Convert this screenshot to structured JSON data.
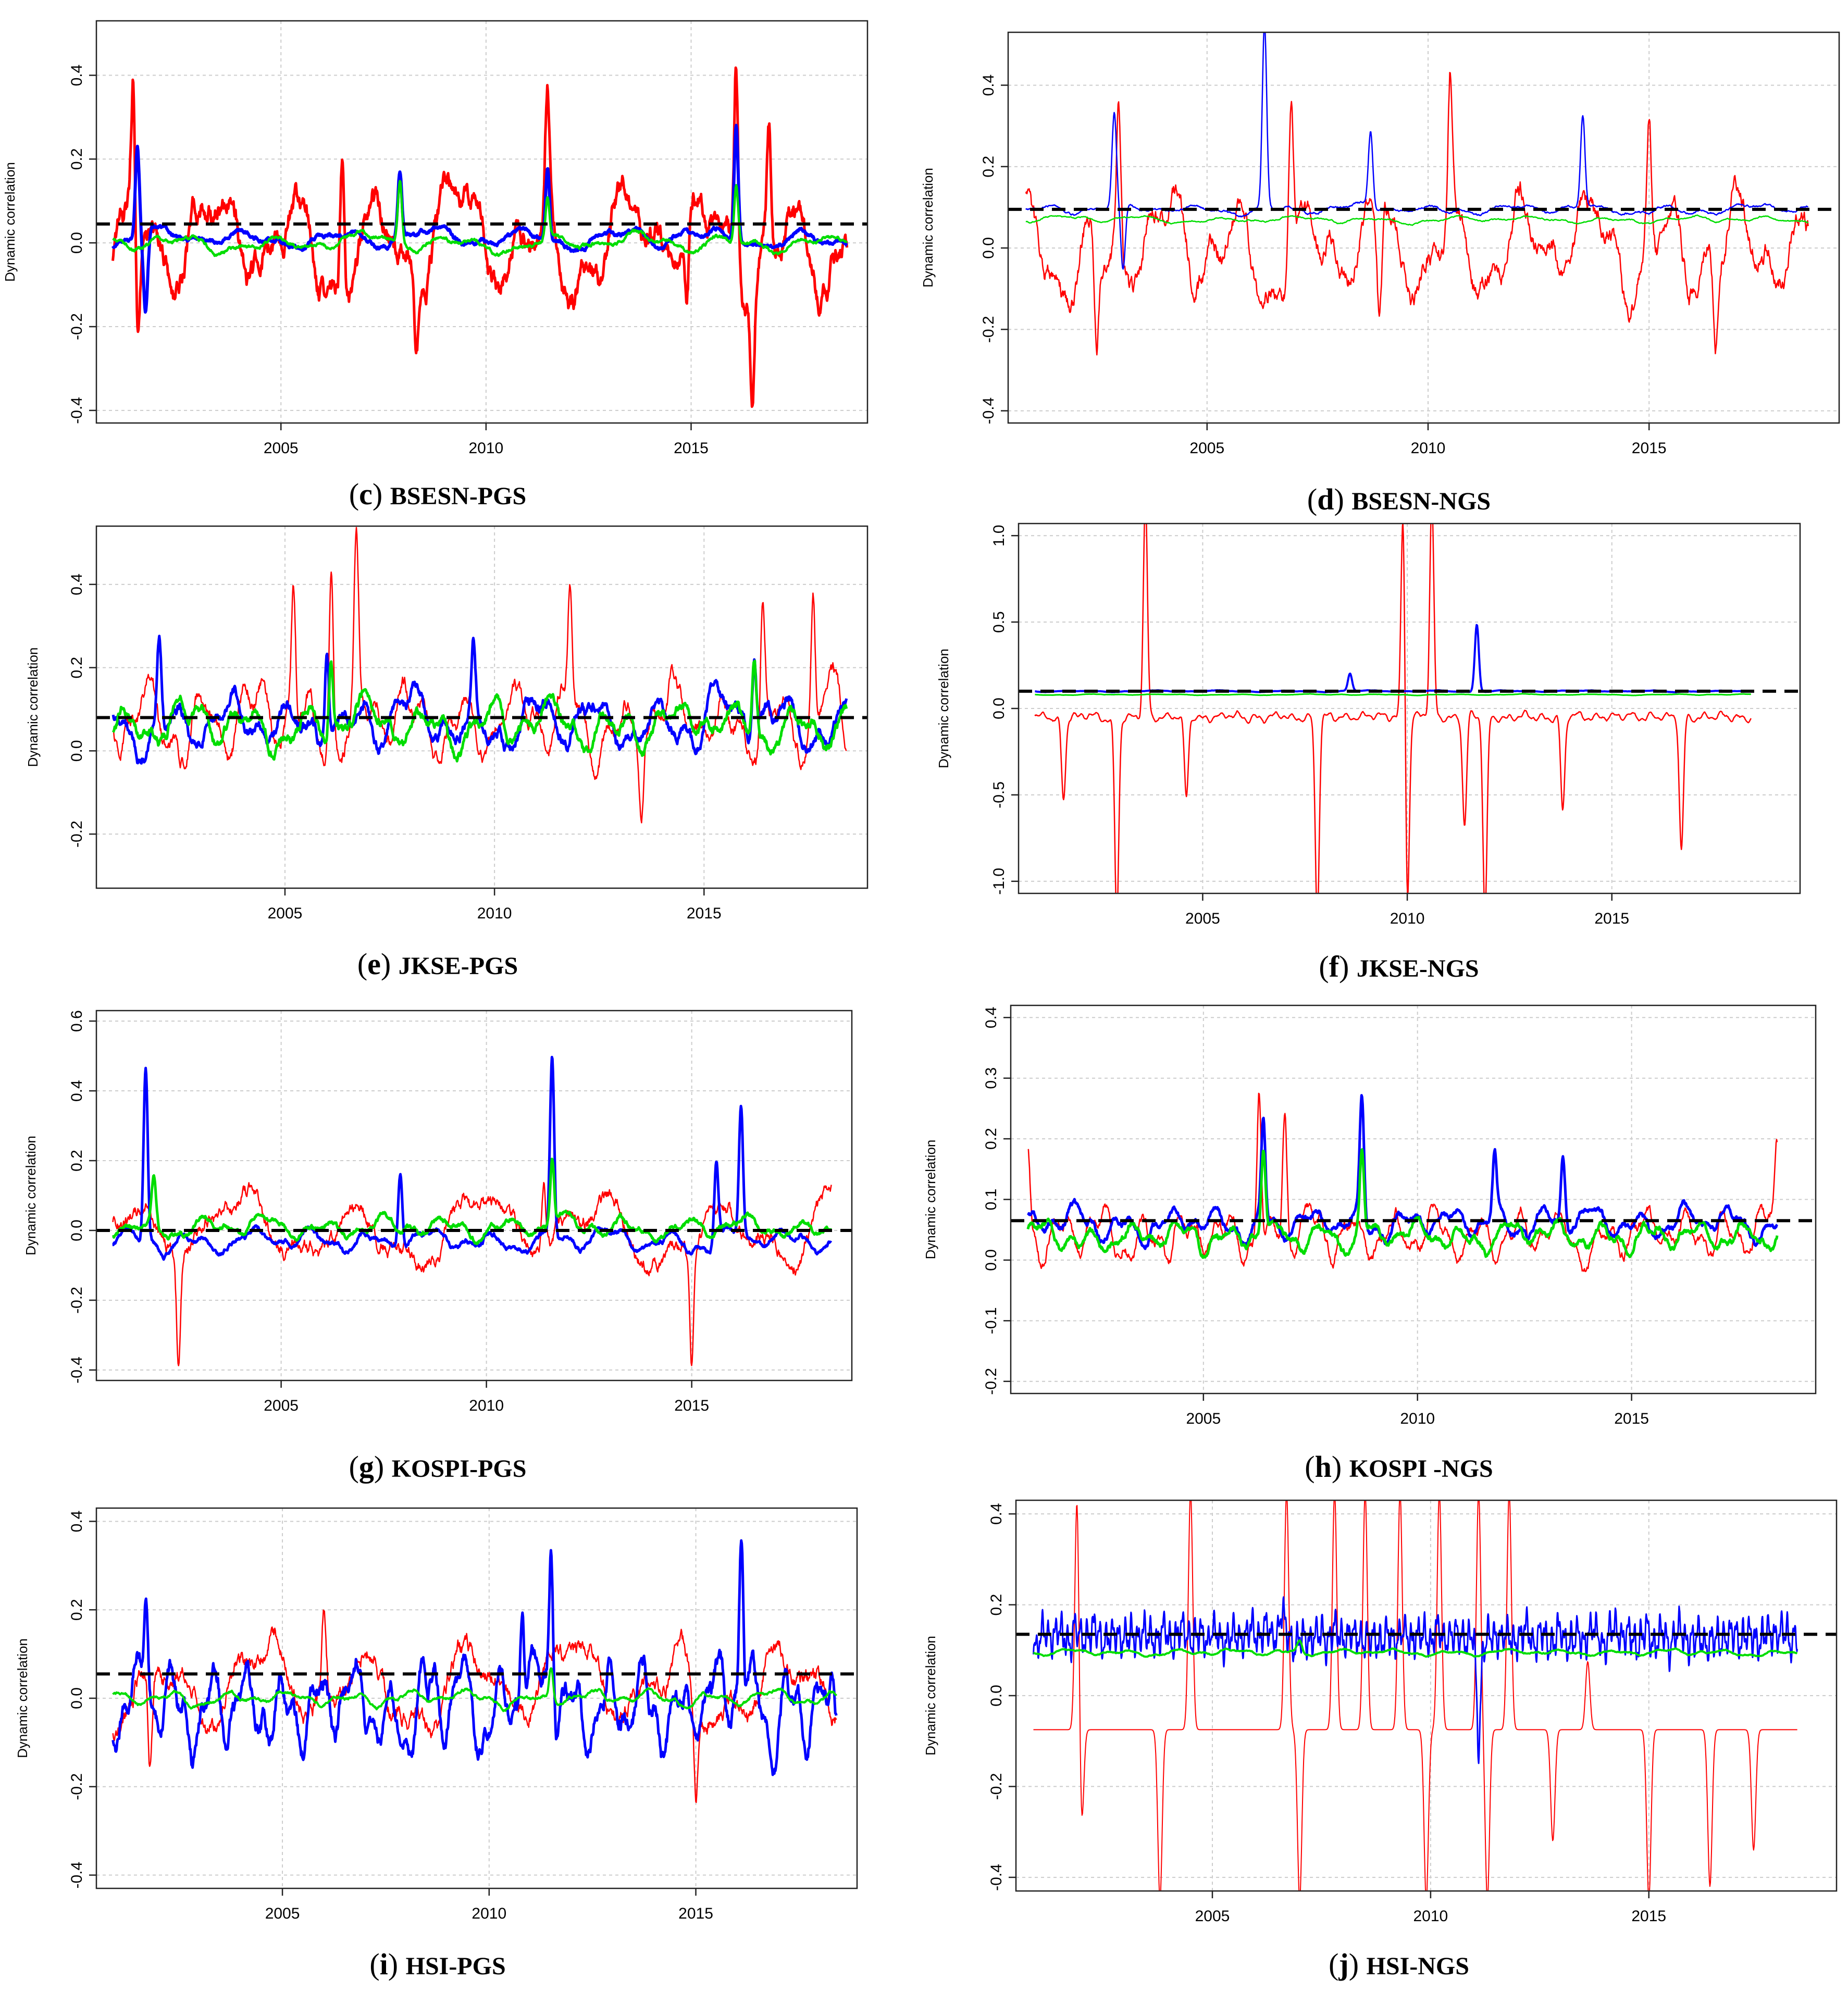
{
  "figure": {
    "series_colors": {
      "red": "#ff0000",
      "blue": "#0000ff",
      "green": "#00dd00",
      "mean": "#000000"
    },
    "grid_color": "#cccccc"
  },
  "chart_data": [
    {
      "id": "c",
      "type": "line",
      "caption_letter": "c",
      "caption_label": "BSESN-PGS",
      "ylabel": "Dynamic correlation",
      "xlim": [
        2000.5,
        2019.3
      ],
      "ylim": [
        -0.43,
        0.53
      ],
      "xticks": [
        2005,
        2010,
        2015
      ],
      "xtick_labels": [
        "2005",
        "2010",
        "2015"
      ],
      "yticks": [
        -0.4,
        -0.2,
        0.0,
        0.2,
        0.4
      ],
      "ytick_labels": [
        "-0.4",
        "-0.2",
        "0.0",
        "0.2",
        "0.4"
      ],
      "mean_line": 0.045,
      "x_start": 2000.9,
      "x_end": 2018.8,
      "series": [
        {
          "name": "red",
          "color": "#ff0000",
          "width": 5,
          "mean": 0.0,
          "amp": 0.16,
          "freq": 9,
          "spikes": [
            [
              2001.4,
              0.36
            ],
            [
              2006.5,
              0.33
            ],
            [
              2011.5,
              0.3
            ],
            [
              2016.1,
              0.48
            ],
            [
              2016.9,
              0.26
            ],
            [
              2008.3,
              -0.21
            ],
            [
              2001.5,
              -0.23
            ],
            [
              2014.9,
              -0.21
            ],
            [
              2016.5,
              -0.24
            ]
          ],
          "seed": 11
        },
        {
          "name": "blue",
          "color": "#0000ff",
          "width": 6,
          "mean": 0.01,
          "amp": 0.03,
          "freq": 8,
          "spikes": [
            [
              2001.5,
              0.23
            ],
            [
              2001.7,
              -0.17
            ],
            [
              2007.9,
              0.17
            ],
            [
              2011.5,
              0.19
            ],
            [
              2016.1,
              0.29
            ]
          ],
          "seed": 22
        },
        {
          "name": "green",
          "color": "#00dd00",
          "width": 4.5,
          "mean": 0.0,
          "amp": 0.025,
          "freq": 8,
          "spikes": [
            [
              2007.9,
              0.15
            ],
            [
              2011.5,
              0.1
            ],
            [
              2016.1,
              0.14
            ]
          ],
          "seed": 33
        }
      ]
    },
    {
      "id": "d",
      "type": "line",
      "caption_letter": "d",
      "caption_label": "BSESN-NGS",
      "ylabel": "Dynamic correlation",
      "xlim": [
        2000.5,
        2019.3
      ],
      "ylim": [
        -0.43,
        0.53
      ],
      "xticks": [
        2005,
        2010,
        2015
      ],
      "xtick_labels": [
        "2005",
        "2010",
        "2015"
      ],
      "yticks": [
        -0.4,
        -0.2,
        0.0,
        0.2,
        0.4
      ],
      "ytick_labels": [
        "-0.4",
        "-0.2",
        "0.0",
        "0.2",
        "0.4"
      ],
      "mean_line": 0.095,
      "x_start": 2000.9,
      "x_end": 2018.6,
      "series": [
        {
          "name": "red",
          "color": "#ff0000",
          "width": 2.5,
          "mean": 0.0,
          "amp": 0.15,
          "freq": 11,
          "spikes": [
            [
              2003.0,
              0.37
            ],
            [
              2006.9,
              0.37
            ],
            [
              2010.5,
              0.38
            ],
            [
              2015.0,
              0.33
            ],
            [
              2008.9,
              -0.24
            ],
            [
              2002.5,
              -0.25
            ],
            [
              2016.5,
              -0.22
            ]
          ],
          "seed": 44
        },
        {
          "name": "blue",
          "color": "#0000ff",
          "width": 2.5,
          "mean": 0.095,
          "amp": 0.015,
          "freq": 10,
          "spikes": [
            [
              2002.9,
              0.32
            ],
            [
              2003.1,
              -0.07
            ],
            [
              2006.3,
              0.55
            ],
            [
              2008.7,
              0.28
            ],
            [
              2013.5,
              0.32
            ]
          ],
          "seed": 55
        },
        {
          "name": "green",
          "color": "#00dd00",
          "width": 2.5,
          "mean": 0.07,
          "amp": 0.01,
          "freq": 10,
          "spikes": [],
          "seed": 66
        }
      ]
    },
    {
      "id": "e",
      "type": "line",
      "caption_letter": "e",
      "caption_label": "JKSE-PGS",
      "ylabel": "Dynamic correlation",
      "xlim": [
        2000.5,
        2018.9
      ],
      "ylim": [
        -0.33,
        0.54
      ],
      "xticks": [
        2005,
        2010,
        2015
      ],
      "xtick_labels": [
        "2005",
        "2010",
        "2015"
      ],
      "yticks": [
        -0.2,
        0.0,
        0.2,
        0.4
      ],
      "ytick_labels": [
        "-0.2",
        "0.0",
        "0.2",
        "0.4"
      ],
      "mean_line": 0.08,
      "x_start": 2000.9,
      "x_end": 2018.4,
      "series": [
        {
          "name": "red",
          "color": "#ff0000",
          "width": 2.5,
          "mean": 0.07,
          "amp": 0.11,
          "freq": 14,
          "spikes": [
            [
              2005.2,
              0.39
            ],
            [
              2006.1,
              0.48
            ],
            [
              2006.7,
              0.45
            ],
            [
              2011.8,
              0.35
            ],
            [
              2016.4,
              0.37
            ],
            [
              2017.6,
              0.4
            ],
            [
              2013.5,
              -0.1
            ]
          ],
          "seed": 77
        },
        {
          "name": "blue",
          "color": "#0000ff",
          "width": 5,
          "mean": 0.07,
          "amp": 0.08,
          "freq": 12,
          "spikes": [
            [
              2002.0,
              0.28
            ],
            [
              2006.0,
              0.3
            ],
            [
              2009.5,
              0.25
            ],
            [
              2016.2,
              0.26
            ]
          ],
          "seed": 88
        },
        {
          "name": "green",
          "color": "#00dd00",
          "width": 5,
          "mean": 0.06,
          "amp": 0.07,
          "freq": 12,
          "spikes": [
            [
              2006.1,
              0.25
            ],
            [
              2016.2,
              0.24
            ]
          ],
          "seed": 99
        }
      ]
    },
    {
      "id": "f",
      "type": "line",
      "caption_letter": "f",
      "caption_label": "JKSE-NGS",
      "ylabel": "Dynamic correlation",
      "xlim": [
        2000.5,
        2019.6
      ],
      "ylim": [
        -1.07,
        1.07
      ],
      "xticks": [
        2005,
        2010,
        2015
      ],
      "xtick_labels": [
        "2005",
        "2010",
        "2015"
      ],
      "yticks": [
        -1.0,
        -0.5,
        0.0,
        0.5,
        1.0
      ],
      "ytick_labels": [
        "-1.0",
        "-0.5",
        "0.0",
        "0.5",
        "1.0"
      ],
      "mean_line": 0.1,
      "x_start": 2000.9,
      "x_end": 2018.4,
      "series": [
        {
          "name": "red",
          "color": "#ff0000",
          "width": 2.5,
          "mean": -0.05,
          "amp": 0.03,
          "freq": 40,
          "spikes": [
            [
              2003.6,
              1.2
            ],
            [
              2009.9,
              1.2
            ],
            [
              2010.6,
              1.2
            ],
            [
              2002.9,
              -1.2
            ],
            [
              2007.8,
              -1.2
            ],
            [
              2010.0,
              -1.2
            ],
            [
              2011.9,
              -1.2
            ],
            [
              2001.6,
              -0.52
            ],
            [
              2004.6,
              -0.52
            ],
            [
              2011.4,
              -0.68
            ],
            [
              2013.8,
              -0.6
            ],
            [
              2016.7,
              -0.82
            ]
          ],
          "seed": 111
        },
        {
          "name": "blue",
          "color": "#0000ff",
          "width": 4,
          "mean": 0.1,
          "amp": 0.005,
          "freq": 10,
          "spikes": [
            [
              2008.6,
              0.2
            ],
            [
              2011.7,
              0.49
            ]
          ],
          "seed": 122
        },
        {
          "name": "green",
          "color": "#00dd00",
          "width": 3,
          "mean": 0.08,
          "amp": 0.004,
          "freq": 10,
          "spikes": [],
          "seed": 133
        }
      ]
    },
    {
      "id": "g",
      "type": "line",
      "caption_letter": "g",
      "caption_label": "KOSPI-PGS",
      "ylabel": "Dynamic correlation",
      "xlim": [
        2000.5,
        2018.9
      ],
      "ylim": [
        -0.43,
        0.63
      ],
      "xticks": [
        2005,
        2010,
        2015
      ],
      "xtick_labels": [
        "2005",
        "2010",
        "2015"
      ],
      "yticks": [
        -0.4,
        -0.2,
        0.0,
        0.2,
        0.4,
        0.6
      ],
      "ytick_labels": [
        "-0.4",
        "-0.2",
        "0.0",
        "0.2",
        "0.4",
        "0.6"
      ],
      "mean_line": 0.0,
      "x_start": 2000.9,
      "x_end": 2018.4,
      "series": [
        {
          "name": "red",
          "color": "#ff0000",
          "width": 2.5,
          "mean": 0.0,
          "amp": 0.12,
          "freq": 6,
          "spikes": [
            [
              2002.5,
              -0.3
            ],
            [
              2015.0,
              -0.33
            ],
            [
              2011.4,
              0.16
            ]
          ],
          "seed": 144
        },
        {
          "name": "blue",
          "color": "#0000ff",
          "width": 5,
          "mean": -0.03,
          "amp": 0.04,
          "freq": 12,
          "spikes": [
            [
              2001.7,
              0.47
            ],
            [
              2011.6,
              0.49
            ],
            [
              2015.6,
              0.2
            ],
            [
              2016.2,
              0.34
            ],
            [
              2007.9,
              0.2
            ]
          ],
          "seed": 155
        },
        {
          "name": "green",
          "color": "#00dd00",
          "width": 5,
          "mean": 0.01,
          "amp": 0.04,
          "freq": 12,
          "spikes": [
            [
              2011.6,
              0.21
            ],
            [
              2001.9,
              0.14
            ]
          ],
          "seed": 166
        }
      ]
    },
    {
      "id": "h",
      "type": "line",
      "caption_letter": "h",
      "caption_label": "KOSPI -NGS",
      "ylabel": "Dynamic correlation",
      "xlim": [
        2000.5,
        2019.3
      ],
      "ylim": [
        -0.22,
        0.42
      ],
      "xticks": [
        2005,
        2010,
        2015
      ],
      "xtick_labels": [
        "2005",
        "2010",
        "2015"
      ],
      "yticks": [
        -0.2,
        -0.1,
        0.0,
        0.1,
        0.2,
        0.3,
        0.4
      ],
      "ytick_labels": [
        "-0.2",
        "-0.1",
        "0.0",
        "0.1",
        "0.2",
        "0.3",
        "0.4"
      ],
      "mean_line": 0.065,
      "x_start": 2000.9,
      "x_end": 2018.4,
      "series": [
        {
          "name": "red",
          "color": "#ff0000",
          "width": 2.5,
          "mean": 0.04,
          "amp": 0.05,
          "freq": 18,
          "spikes": [
            [
              2000.9,
              0.19
            ],
            [
              2006.3,
              0.3
            ],
            [
              2006.9,
              0.25
            ],
            [
              2018.4,
              0.16
            ]
          ],
          "seed": 177
        },
        {
          "name": "blue",
          "color": "#0000ff",
          "width": 5,
          "mean": 0.06,
          "amp": 0.03,
          "freq": 16,
          "spikes": [
            [
              2006.4,
              0.23
            ],
            [
              2008.7,
              0.26
            ],
            [
              2011.8,
              0.17
            ],
            [
              2013.4,
              0.17
            ]
          ],
          "seed": 188
        },
        {
          "name": "green",
          "color": "#00dd00",
          "width": 5,
          "mean": 0.04,
          "amp": 0.03,
          "freq": 16,
          "spikes": [
            [
              2008.7,
              0.18
            ],
            [
              2006.4,
              0.19
            ]
          ],
          "seed": 199
        }
      ]
    },
    {
      "id": "i",
      "type": "line",
      "caption_letter": "i",
      "caption_label": "HSI-PGS",
      "ylabel": "Dynamic correlation",
      "xlim": [
        2000.5,
        2018.9
      ],
      "ylim": [
        -0.43,
        0.43
      ],
      "xticks": [
        2005,
        2010,
        2015
      ],
      "xtick_labels": [
        "2005",
        "2010",
        "2015"
      ],
      "yticks": [
        -0.4,
        -0.2,
        0.0,
        0.2,
        0.4
      ],
      "ytick_labels": [
        "-0.4",
        "-0.2",
        "0.0",
        "0.2",
        "0.4"
      ],
      "mean_line": 0.055,
      "x_start": 2000.9,
      "x_end": 2018.4,
      "series": [
        {
          "name": "red",
          "color": "#ff0000",
          "width": 2.5,
          "mean": 0.03,
          "amp": 0.12,
          "freq": 7,
          "spikes": [
            [
              2001.8,
              -0.19
            ],
            [
              2015.0,
              -0.22
            ],
            [
              2006.0,
              0.22
            ]
          ],
          "seed": 211
        },
        {
          "name": "blue",
          "color": "#0000ff",
          "width": 5,
          "mean": -0.02,
          "amp": 0.12,
          "freq": 20,
          "spikes": [
            [
              2011.5,
              0.37
            ],
            [
              2016.1,
              0.38
            ],
            [
              2010.8,
              0.27
            ],
            [
              2001.7,
              0.2
            ],
            [
              2018.2,
              -0.12
            ]
          ],
          "seed": 222
        },
        {
          "name": "green",
          "color": "#00dd00",
          "width": 4,
          "mean": 0.0,
          "amp": 0.02,
          "freq": 12,
          "spikes": [
            [
              2011.5,
              0.08
            ]
          ],
          "seed": 233
        }
      ]
    },
    {
      "id": "j",
      "type": "line",
      "caption_letter": "j",
      "caption_label": "HSI-NGS",
      "ylabel": "Dynamic correlation",
      "xlim": [
        2000.5,
        2019.3
      ],
      "ylim": [
        -0.43,
        0.43
      ],
      "xticks": [
        2005,
        2010,
        2015
      ],
      "xtick_labels": [
        "2005",
        "2010",
        "2015"
      ],
      "yticks": [
        -0.4,
        -0.2,
        0.0,
        0.2,
        0.4
      ],
      "ytick_labels": [
        "-0.4",
        "-0.2",
        "0.0",
        "0.2",
        "0.4"
      ],
      "mean_line": 0.135,
      "x_start": 2000.9,
      "x_end": 2018.4,
      "series": [
        {
          "name": "red",
          "color": "#ff0000",
          "width": 2,
          "mean": -0.075,
          "amp": 0.0,
          "freq": 1,
          "spikes": [
            [
              2001.9,
              0.45
            ],
            [
              2004.5,
              0.45
            ],
            [
              2006.7,
              0.45
            ],
            [
              2007.8,
              0.45
            ],
            [
              2008.5,
              0.45
            ],
            [
              2009.3,
              0.45
            ],
            [
              2010.2,
              0.45
            ],
            [
              2011.1,
              0.45
            ],
            [
              2011.8,
              0.45
            ],
            [
              2013.6,
              0.45
            ],
            [
              2003.8,
              -0.45
            ],
            [
              2007.0,
              -0.45
            ],
            [
              2009.9,
              -0.45
            ],
            [
              2011.3,
              -0.45
            ],
            [
              2013.6,
              -0.45
            ],
            [
              2015.0,
              -0.45
            ],
            [
              2016.4,
              -0.42
            ],
            [
              2002.0,
              -0.31
            ],
            [
              2012.8,
              -0.32
            ],
            [
              2017.4,
              -0.34
            ]
          ],
          "seed": 244
        },
        {
          "name": "blue",
          "color": "#0000ff",
          "width": 3,
          "mean": 0.13,
          "amp": 0.05,
          "freq": 120,
          "spikes": [
            [
              2001.0,
              0.26
            ],
            [
              2001.0,
              -0.01
            ],
            [
              2006.6,
              0.18
            ],
            [
              2011.1,
              -0.1
            ]
          ],
          "seed": 255
        },
        {
          "name": "green",
          "color": "#00dd00",
          "width": 4,
          "mean": 0.095,
          "amp": 0.008,
          "freq": 14,
          "spikes": [
            [
              2007.0,
              0.12
            ]
          ],
          "seed": 266
        }
      ]
    }
  ]
}
